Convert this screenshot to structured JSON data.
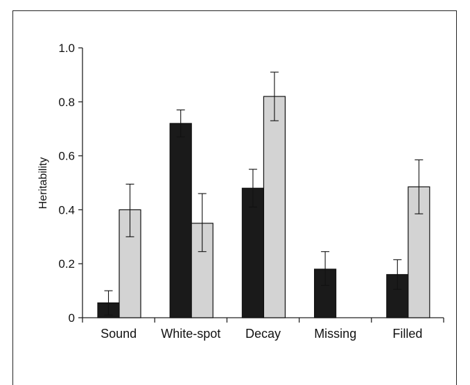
{
  "chart_data": {
    "type": "bar",
    "ylabel": "Heritability",
    "xlabel": "",
    "ylim": [
      0,
      1.0
    ],
    "yticks": [
      "0",
      "0.2",
      "0.4",
      "0.6",
      "0.8",
      "1.0"
    ],
    "ytick_values": [
      0,
      0.2,
      0.4,
      0.6,
      0.8,
      1.0
    ],
    "categories": [
      "Sound",
      "White-spot",
      "Decay",
      "Missing",
      "Filled"
    ],
    "series": [
      {
        "color": "#1a1a1a",
        "values": [
          0.055,
          0.72,
          0.48,
          0.18,
          0.16
        ],
        "error_low": [
          0.01,
          0.67,
          0.41,
          0.12,
          0.105
        ],
        "error_high": [
          0.1,
          0.77,
          0.55,
          0.245,
          0.215
        ]
      },
      {
        "color": "#d3d3d3",
        "values": [
          0.4,
          0.35,
          0.82,
          null,
          0.485
        ],
        "error_low": [
          0.3,
          0.245,
          0.73,
          null,
          0.385
        ],
        "error_high": [
          0.495,
          0.46,
          0.91,
          null,
          0.585
        ]
      }
    ],
    "grid": false,
    "legend": "none"
  }
}
